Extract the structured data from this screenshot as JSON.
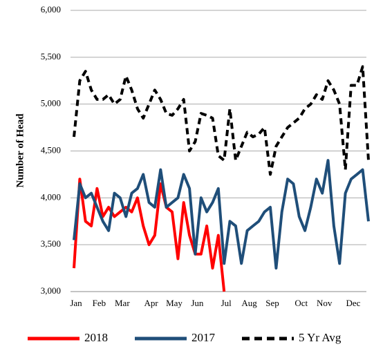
{
  "chart_data": {
    "type": "line",
    "y_label": "Number of Head",
    "categories": [
      "Jan",
      null,
      null,
      null,
      "Feb",
      null,
      null,
      null,
      "Mar",
      null,
      null,
      null,
      null,
      "Apr",
      null,
      null,
      null,
      "May",
      null,
      null,
      null,
      "Jun",
      null,
      null,
      null,
      null,
      "Jul",
      null,
      null,
      null,
      "Aug",
      null,
      null,
      null,
      "Sep",
      null,
      null,
      null,
      null,
      "Oct",
      null,
      null,
      null,
      "Nov",
      null,
      null,
      null,
      null,
      "Dec",
      null,
      null,
      null
    ],
    "series": [
      {
        "name": "2018",
        "color": "#ff0000",
        "dash": false,
        "values": [
          3250,
          4200,
          3750,
          3700,
          4100,
          3800,
          3900,
          3800,
          3850,
          3900,
          3850,
          4000,
          3700,
          3500,
          3600,
          4150,
          3900,
          3850,
          3350,
          3950,
          3600,
          3400,
          3400,
          3700,
          3250,
          3600,
          3000,
          null,
          null,
          null,
          null,
          null,
          null,
          null,
          null,
          null,
          null,
          null,
          null,
          null,
          null,
          null,
          null,
          null,
          null,
          null,
          null,
          null,
          null,
          null,
          null,
          null
        ]
      },
      {
        "name": "2017",
        "color": "#1f4e79",
        "dash": false,
        "values": [
          3550,
          4150,
          4000,
          4050,
          3900,
          3750,
          3650,
          4050,
          4000,
          3800,
          4050,
          4100,
          4250,
          3950,
          3900,
          4300,
          3900,
          3950,
          4000,
          4250,
          4100,
          3400,
          4000,
          3850,
          3950,
          4100,
          3300,
          3750,
          3700,
          3300,
          3650,
          3700,
          3750,
          3850,
          3900,
          3250,
          3850,
          4200,
          4150,
          3800,
          3650,
          3900,
          4200,
          4050,
          4400,
          3700,
          3300,
          4050,
          4200,
          4250,
          4300,
          3750
        ]
      },
      {
        "name": "5 Yr Avg",
        "color": "#000000",
        "dash": true,
        "values": [
          4650,
          5250,
          5350,
          5150,
          5050,
          5050,
          5100,
          5000,
          5050,
          5300,
          5150,
          4950,
          4850,
          5000,
          5150,
          5050,
          4900,
          4880,
          4950,
          5050,
          4500,
          4600,
          4900,
          4880,
          4850,
          4450,
          4400,
          4950,
          4400,
          4550,
          4700,
          4650,
          4680,
          4750,
          4250,
          4550,
          4650,
          4750,
          4800,
          4850,
          4950,
          5000,
          5100,
          5050,
          5250,
          5150,
          5000,
          4300,
          5200,
          5200,
          5400,
          4400
        ]
      }
    ],
    "ylim": [
      3000,
      6000
    ],
    "yticks": [
      {
        "value": 3000,
        "label": "3,000"
      },
      {
        "value": 3500,
        "label": "3,500"
      },
      {
        "value": 4000,
        "label": "4,000"
      },
      {
        "value": 4500,
        "label": "4,500"
      },
      {
        "value": 5000,
        "label": "5,000"
      },
      {
        "value": 5500,
        "label": "5,500"
      },
      {
        "value": 6000,
        "label": "6,000"
      }
    ],
    "grid": true,
    "legend": "bottom"
  }
}
